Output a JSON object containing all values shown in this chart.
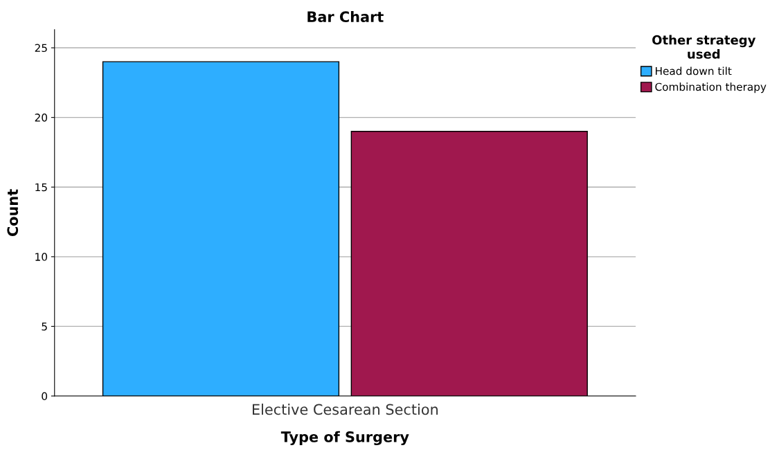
{
  "chart_data": {
    "type": "bar",
    "title": "Bar Chart",
    "xlabel": "Type of Surgery",
    "ylabel": "Count",
    "legend_title": "Other strategy\nused",
    "categories": [
      "Elective Cesarean Section"
    ],
    "series": [
      {
        "name": "Head down tilt",
        "color": "#2eaeff",
        "values": [
          24
        ]
      },
      {
        "name": "Combination therapy",
        "color": "#a0184e",
        "values": [
          19
        ]
      }
    ],
    "ylim": [
      0,
      26.3
    ],
    "yticks": [
      0,
      5,
      10,
      15,
      20,
      25
    ],
    "grid": "y",
    "legend": "right"
  }
}
